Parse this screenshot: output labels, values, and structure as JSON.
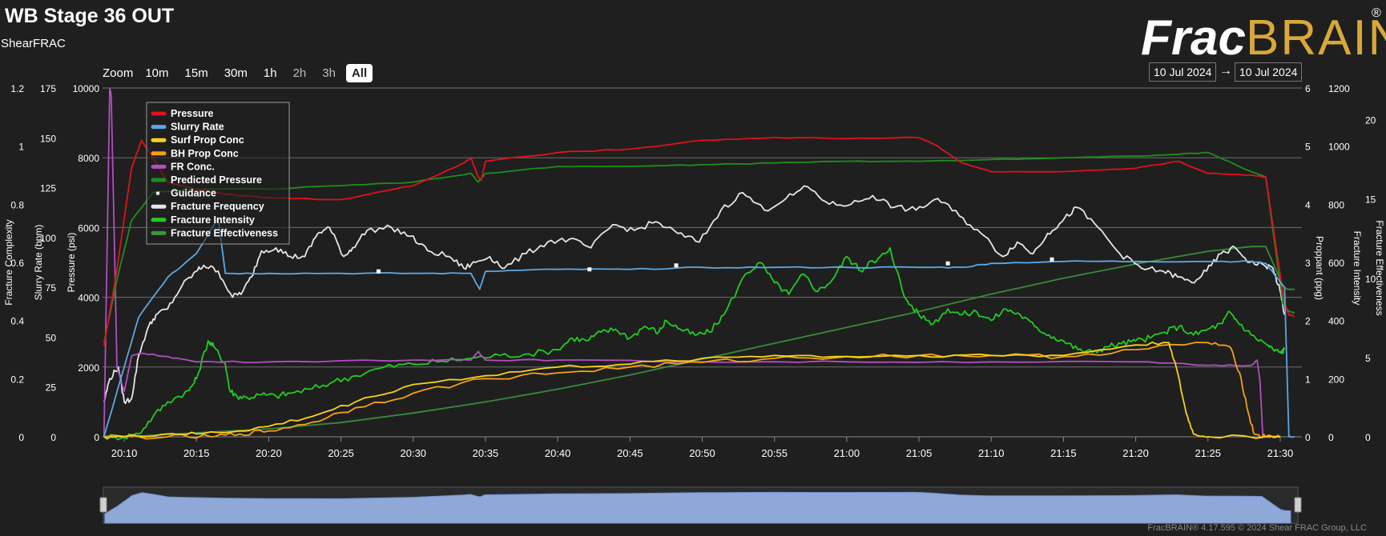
{
  "header": {
    "title": "WB Stage 36 OUT",
    "subtitle": "ShearFRAC",
    "logo_part1": "Frac",
    "logo_part2": "BRAIN",
    "logo_mark": "®"
  },
  "zoom": {
    "label": "Zoom",
    "buttons": [
      "10m",
      "15m",
      "30m",
      "1h",
      "2h",
      "3h",
      "All"
    ],
    "selected": "All"
  },
  "date_range": {
    "from": "10 Jul 2024",
    "arrow": "→",
    "to": "10 Jul 2024"
  },
  "footer": "FracBRAIN® 4.17.595 © 2024 Shear FRAC Group, LLC",
  "colors": {
    "pressure": "#e0121b",
    "slurry_rate": "#5ba8e4",
    "surf_prop": "#f6d21e",
    "bh_prop": "#f2a01c",
    "fr_conc": "#b24ec2",
    "predicted_pressure": "#1c8f1c",
    "guidance": "#ffffff",
    "frequency": "#e6e6e6",
    "intensity": "#22cc22",
    "effectiveness": "#3c963c",
    "navigator": "#8fa8d8"
  },
  "chart_data": {
    "type": "line",
    "x_unit": "time",
    "x_ticks": [
      "20:10",
      "20:15",
      "20:20",
      "20:25",
      "20:30",
      "20:35",
      "20:40",
      "20:45",
      "20:50",
      "20:55",
      "21:00",
      "21:05",
      "21:10",
      "21:15",
      "21:20",
      "21:25",
      "21:30"
    ],
    "xlim": [
      "20:08.5",
      "21:31.5"
    ],
    "axes": {
      "fracture_complexity": {
        "label": "Fracture Complexity",
        "ticks": [
          "0",
          "0.2",
          "0.4",
          "0.6",
          "0.8",
          "1",
          "1.2"
        ],
        "range": [
          0,
          1.2
        ]
      },
      "slurry_rate": {
        "label": "Slurry Rate (bpm)",
        "ticks": [
          "0",
          "25",
          "50",
          "75",
          "100",
          "125",
          "150",
          "175"
        ],
        "range": [
          0,
          175
        ]
      },
      "pressure": {
        "label": "Pressure (psi)",
        "ticks": [
          "0",
          "2000",
          "4000",
          "6000",
          "8000",
          "10000"
        ],
        "range": [
          0,
          10000
        ]
      },
      "proppant": {
        "label": "Proppant (ppg)",
        "ticks": [
          "0",
          "1",
          "2",
          "3",
          "4",
          "5",
          "6"
        ],
        "range": [
          0,
          6
        ]
      },
      "fracture_intensity": {
        "label": "Fracture Intensity",
        "ticks": [
          "0",
          "200",
          "400",
          "600",
          "800",
          "1000",
          "1200"
        ],
        "range": [
          0,
          1200
        ]
      },
      "fracture_effectiveness": {
        "label": "Fracture Effectiveness",
        "ticks": [
          "0",
          "5",
          "10",
          "15",
          "20"
        ],
        "range": [
          0,
          22
        ]
      }
    },
    "legend": {
      "placement": "top-left",
      "entries": [
        "Pressure",
        "Slurry Rate",
        "Surf Prop Conc",
        "BH Prop Conc",
        "FR Conc.",
        "Predicted Pressure",
        "Guidance",
        "Fracture Frequency",
        "Fracture Intensity",
        "Fracture Effectiveness"
      ]
    },
    "grid": true,
    "series": [
      {
        "name": "Pressure",
        "axis": "pressure",
        "color_key": "pressure",
        "t": [
          8.6,
          9.5,
          10.5,
          11.2,
          12,
          13,
          14,
          15,
          17,
          20,
          25,
          30,
          33.5,
          34,
          34.5,
          34.7,
          35,
          40,
          45,
          50,
          55,
          60,
          65,
          66,
          68,
          70,
          75,
          80,
          83,
          85,
          88,
          89,
          90.3,
          90.6,
          91
        ],
        "v": [
          2600,
          4800,
          7700,
          8500,
          8000,
          7300,
          7200,
          7100,
          6950,
          6850,
          6800,
          7200,
          7850,
          8000,
          7450,
          7350,
          7900,
          8150,
          8250,
          8500,
          8580,
          8550,
          8580,
          8400,
          7850,
          7600,
          7600,
          7700,
          7900,
          7550,
          7500,
          7450,
          3800,
          3500,
          3450
        ]
      },
      {
        "name": "Predicted Pressure",
        "axis": "pressure",
        "color_key": "predicted_pressure",
        "t": [
          8.6,
          9.5,
          10.5,
          12,
          15,
          20,
          25,
          30,
          34,
          34.5,
          35,
          40,
          45,
          50,
          55,
          60,
          65,
          70,
          75,
          80,
          83,
          85,
          88,
          89,
          90.2,
          90.6,
          91
        ],
        "v": [
          2700,
          4500,
          6200,
          7000,
          7100,
          7100,
          7200,
          7300,
          7550,
          7300,
          7550,
          7750,
          7750,
          7800,
          7850,
          7900,
          7900,
          7950,
          8000,
          8050,
          8100,
          8150,
          7600,
          7450,
          3800,
          3600,
          3550
        ]
      },
      {
        "name": "Slurry Rate",
        "axis": "slurry_rate",
        "color_key": "slurry_rate",
        "t": [
          8.6,
          10,
          11,
          13,
          15,
          16.5,
          17,
          20,
          25,
          30,
          34,
          34.6,
          35,
          40,
          45,
          50,
          55,
          60,
          65,
          68,
          70,
          75,
          80,
          85,
          88,
          89,
          90.3,
          90.6,
          91
        ],
        "v": [
          0,
          35,
          60,
          80,
          92,
          110,
          82,
          82,
          82,
          82,
          82,
          74,
          83,
          84,
          84,
          85,
          85,
          85,
          85,
          85,
          87,
          88,
          88,
          88,
          88,
          87,
          75,
          0,
          0
        ]
      },
      {
        "name": "Surf Prop Conc",
        "axis": "proppant",
        "color_key": "surf_prop",
        "t": [
          8.6,
          10,
          13,
          15,
          18,
          20,
          23,
          26,
          30,
          35,
          40,
          45,
          50,
          55,
          60,
          65,
          70,
          75,
          80,
          82.3,
          82.8,
          83.5,
          84,
          85,
          90
        ],
        "v": [
          0,
          0,
          0.05,
          0.05,
          0.1,
          0.18,
          0.35,
          0.6,
          0.9,
          1.05,
          1.2,
          1.25,
          1.35,
          1.4,
          1.38,
          1.4,
          1.4,
          1.4,
          1.58,
          1.62,
          1.2,
          0.4,
          0.05,
          0,
          0
        ]
      },
      {
        "name": "BH Prop Conc",
        "axis": "proppant",
        "color_key": "bh_prop",
        "t": [
          8.6,
          13,
          16,
          18,
          20,
          23,
          26,
          30,
          35,
          40,
          45,
          50,
          55,
          60,
          65,
          70,
          75,
          80,
          85,
          86.5,
          87.2,
          87.8,
          88.2,
          89,
          90
        ],
        "v": [
          0,
          0,
          0,
          0.05,
          0.1,
          0.25,
          0.5,
          0.75,
          1.0,
          1.1,
          1.2,
          1.28,
          1.35,
          1.38,
          1.4,
          1.4,
          1.38,
          1.5,
          1.62,
          1.55,
          1.1,
          0.4,
          0.05,
          0,
          0
        ]
      },
      {
        "name": "FR Conc.",
        "axis": "pressure",
        "color_key": "fr_conc",
        "t": [
          8.6,
          9,
          9.1,
          9.3,
          9.5,
          10,
          10.5,
          11,
          13,
          15,
          20,
          30,
          34,
          34.5,
          35,
          40,
          50,
          60,
          70,
          80,
          85,
          88,
          88.4,
          88.6,
          88.8,
          90
        ],
        "v": [
          0,
          10000,
          9800,
          6000,
          2000,
          1300,
          2300,
          2400,
          2300,
          2150,
          2150,
          2200,
          2200,
          2450,
          2200,
          2200,
          2150,
          2150,
          2150,
          2150,
          2050,
          2050,
          2200,
          1600,
          0,
          0
        ]
      },
      {
        "name": "Fracture Frequency",
        "axis": "fracture_complexity",
        "color_key": "frequency",
        "t": [
          8.6,
          9,
          9.6,
          10,
          10.5,
          11,
          11.6,
          12.2,
          13,
          14,
          15,
          15.5,
          16.5,
          17.5,
          18.2,
          18.8,
          19.5,
          20.5,
          21.5,
          22.5,
          23.4,
          24.2,
          25.2,
          25.8,
          26.8,
          28.5,
          29.8,
          31,
          32.5,
          33.5,
          34.3,
          35.3,
          36.3,
          37.8,
          39.3,
          40.8,
          42.3,
          43.8,
          45.3,
          46.8,
          48.3,
          49.8,
          51.3,
          52.8,
          54.3,
          55.8,
          57.3,
          58.8,
          60.3,
          61.8,
          63.3,
          64.8,
          66.3,
          67.8,
          69.3,
          70.8,
          71.8,
          72.9,
          73.9,
          74.9,
          75.9,
          77.4,
          78.9,
          80.4,
          81.9,
          82.9,
          83.9,
          84.9,
          85.9,
          86.9,
          87.9,
          88.9,
          89.5,
          90,
          90.3
        ],
        "v": [
          0.12,
          0.2,
          0.24,
          0.12,
          0.13,
          0.28,
          0.37,
          0.42,
          0.44,
          0.52,
          0.57,
          0.59,
          0.57,
          0.48,
          0.5,
          0.55,
          0.64,
          0.65,
          0.62,
          0.62,
          0.7,
          0.72,
          0.62,
          0.65,
          0.71,
          0.72,
          0.69,
          0.64,
          0.62,
          0.58,
          0.6,
          0.62,
          0.58,
          0.63,
          0.67,
          0.68,
          0.65,
          0.73,
          0.71,
          0.74,
          0.7,
          0.67,
          0.78,
          0.84,
          0.78,
          0.82,
          0.86,
          0.8,
          0.8,
          0.83,
          0.79,
          0.78,
          0.82,
          0.76,
          0.7,
          0.62,
          0.67,
          0.63,
          0.7,
          0.74,
          0.79,
          0.72,
          0.63,
          0.58,
          0.57,
          0.55,
          0.53,
          0.57,
          0.63,
          0.65,
          0.6,
          0.59,
          0.58,
          0.5,
          0.42
        ]
      },
      {
        "name": "Fracture Intensity",
        "axis": "fracture_intensity",
        "color_key": "intensity",
        "t": [
          8.6,
          10,
          11,
          12,
          13,
          14.5,
          15,
          15.8,
          16.2,
          17,
          17.3,
          17.8,
          18.5,
          19.5,
          20.5,
          21.5,
          23,
          24.5,
          26,
          28,
          30,
          32,
          34,
          36,
          38,
          40,
          41,
          42,
          43,
          44,
          45,
          46,
          47,
          47.5,
          48.5,
          49.5,
          50.5,
          51.5,
          53,
          54,
          55,
          56,
          57,
          58,
          59,
          60,
          61,
          61.5,
          62,
          63,
          64,
          65,
          66,
          67,
          68,
          69,
          70,
          71,
          72,
          73,
          74,
          75,
          76,
          77,
          78,
          79,
          80,
          81,
          82,
          83,
          84,
          85,
          86,
          86.5,
          87,
          88,
          89,
          89.5,
          90,
          90.3
        ],
        "v": [
          0,
          0,
          10,
          70,
          120,
          160,
          200,
          330,
          310,
          250,
          160,
          140,
          135,
          145,
          140,
          150,
          165,
          190,
          210,
          240,
          250,
          260,
          270,
          280,
          285,
          300,
          340,
          330,
          360,
          370,
          340,
          380,
          360,
          400,
          370,
          350,
          360,
          420,
          560,
          600,
          530,
          490,
          560,
          500,
          540,
          620,
          570,
          600,
          600,
          650,
          480,
          420,
          390,
          440,
          420,
          430,
          400,
          440,
          420,
          380,
          350,
          330,
          300,
          290,
          310,
          320,
          330,
          340,
          360,
          380,
          350,
          370,
          390,
          430,
          400,
          350,
          320,
          300,
          290,
          300
        ]
      },
      {
        "name": "Fracture Effectiveness",
        "axis": "fracture_effectiveness",
        "color_key": "effectiveness",
        "t": [
          8.6,
          10,
          11,
          12,
          15,
          20,
          25,
          30,
          35,
          40,
          45,
          50,
          55,
          60,
          65,
          70,
          75,
          80,
          85,
          88,
          89,
          90.2,
          90.5,
          91
        ],
        "v": [
          0,
          0,
          0.05,
          0.1,
          0.25,
          0.5,
          0.9,
          1.5,
          2.2,
          3.0,
          3.9,
          4.9,
          5.9,
          6.9,
          7.9,
          9.0,
          10.0,
          10.9,
          11.7,
          12.0,
          12.0,
          9.5,
          9.3,
          9.3
        ]
      }
    ],
    "guidance_points": {
      "axis": "slurry_rate",
      "t": [
        27.6,
        42.2,
        48.2,
        67,
        74.2
      ],
      "v": [
        83,
        84,
        86,
        87,
        89
      ]
    }
  }
}
